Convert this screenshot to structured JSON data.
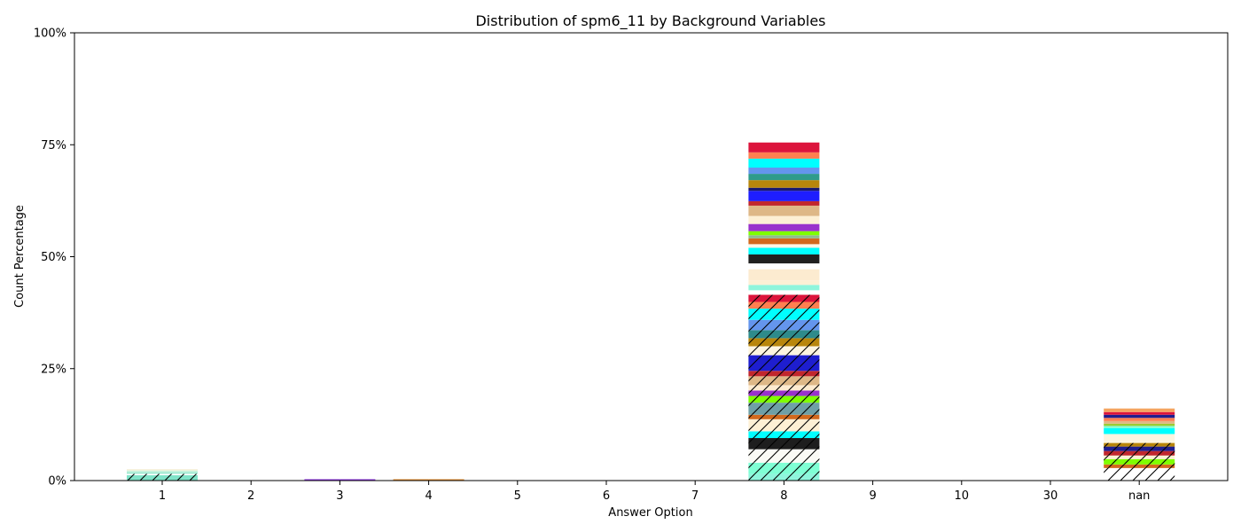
{
  "chart_data": {
    "type": "bar",
    "stacked": true,
    "title": "Distribution of spm6_11 by Background Variables",
    "xlabel": "Answer Option",
    "ylabel": "Count Percentage",
    "ylim": [
      0,
      100
    ],
    "y_ticks": [
      0,
      25,
      50,
      75,
      100
    ],
    "y_tick_labels": [
      "0%",
      "25%",
      "50%",
      "75%",
      "100%"
    ],
    "categories": [
      "1",
      "2",
      "3",
      "4",
      "5",
      "6",
      "7",
      "8",
      "9",
      "10",
      "30",
      "nan"
    ],
    "grid": false,
    "legend": "none",
    "stacks": {
      "1": [
        {
          "value": 1.2,
          "color": "#7fe3c8",
          "hatch": true
        },
        {
          "value": 0.3,
          "color": "#ffffff",
          "hatch": true
        },
        {
          "value": 0.4,
          "color": "#9fe9d2",
          "hatch": false
        },
        {
          "value": 0.35,
          "color": "#c9f3de",
          "hatch": false
        },
        {
          "value": 0.3,
          "color": "#f6efd8",
          "hatch": false
        }
      ],
      "3": [
        {
          "value": 0.3,
          "color": "#8a2be2",
          "hatch": false
        }
      ],
      "4": [
        {
          "value": 0.3,
          "color": "#e58b2a",
          "hatch": false
        }
      ],
      "8": [
        {
          "value": 1.5,
          "color": "#8ff5dc",
          "hatch": true
        },
        {
          "value": 2.5,
          "color": "#7fffd4",
          "hatch": true
        },
        {
          "value": 3.0,
          "color": "#fafaf5",
          "hatch": true
        },
        {
          "value": 2.5,
          "color": "#1e1e1e",
          "hatch": true
        },
        {
          "value": 1.5,
          "color": "#00ffff",
          "hatch": true
        },
        {
          "value": 2.7,
          "color": "#fdf0d5",
          "hatch": true
        },
        {
          "value": 1.0,
          "color": "#d2691e",
          "hatch": true
        },
        {
          "value": 2.7,
          "color": "#6f9fa6",
          "hatch": true
        },
        {
          "value": 1.5,
          "color": "#7fff00",
          "hatch": true
        },
        {
          "value": 1.2,
          "color": "#9932cc",
          "hatch": true
        },
        {
          "value": 1.2,
          "color": "#fdebd0",
          "hatch": true
        },
        {
          "value": 2.0,
          "color": "#deb887",
          "hatch": true
        },
        {
          "value": 1.2,
          "color": "#c1272d",
          "hatch": true
        },
        {
          "value": 3.5,
          "color": "#1e1ecf",
          "hatch": true
        },
        {
          "value": 2.0,
          "color": "#fdf5e0",
          "hatch": true
        },
        {
          "value": 1.8,
          "color": "#b8860b",
          "hatch": true
        },
        {
          "value": 1.8,
          "color": "#2e8b8b",
          "hatch": true
        },
        {
          "value": 2.3,
          "color": "#6495ed",
          "hatch": true
        },
        {
          "value": 2.5,
          "color": "#00ffff",
          "hatch": true
        },
        {
          "value": 1.5,
          "color": "#ff7f50",
          "hatch": true
        },
        {
          "value": 1.6,
          "color": "#dc143c",
          "hatch": true
        },
        {
          "value": 1.0,
          "color": "#ffffff",
          "hatch": false
        },
        {
          "value": 1.2,
          "color": "#8ff5dc",
          "hatch": false
        },
        {
          "value": 1.0,
          "color": "#fdf0d5",
          "hatch": false
        },
        {
          "value": 2.5,
          "color": "#fcebd0",
          "hatch": false
        },
        {
          "value": 1.3,
          "color": "#ffffff",
          "hatch": false
        },
        {
          "value": 2.0,
          "color": "#202020",
          "hatch": false
        },
        {
          "value": 1.5,
          "color": "#00ffff",
          "hatch": false
        },
        {
          "value": 0.8,
          "color": "#fff5e6",
          "hatch": false
        },
        {
          "value": 1.3,
          "color": "#d2691e",
          "hatch": false
        },
        {
          "value": 0.7,
          "color": "#8fbc8f",
          "hatch": false
        },
        {
          "value": 0.9,
          "color": "#7fff00",
          "hatch": false
        },
        {
          "value": 1.6,
          "color": "#9932cc",
          "hatch": false
        },
        {
          "value": 1.8,
          "color": "#fdf0d5",
          "hatch": false
        },
        {
          "value": 2.3,
          "color": "#deb887",
          "hatch": false
        },
        {
          "value": 1.0,
          "color": "#c1272d",
          "hatch": false
        },
        {
          "value": 2.3,
          "color": "#1e1eff",
          "hatch": false
        },
        {
          "value": 0.7,
          "color": "#191970",
          "hatch": false
        },
        {
          "value": 1.7,
          "color": "#b8860b",
          "hatch": false
        },
        {
          "value": 1.4,
          "color": "#2e9b8b",
          "hatch": false
        },
        {
          "value": 1.4,
          "color": "#6495ed",
          "hatch": false
        },
        {
          "value": 2.0,
          "color": "#00ffff",
          "hatch": false
        },
        {
          "value": 1.4,
          "color": "#ff7f50",
          "hatch": false
        },
        {
          "value": 2.2,
          "color": "#dc143c",
          "hatch": false
        }
      ],
      "nan": [
        {
          "value": 2.8,
          "color": "#ffffff",
          "hatch": true
        },
        {
          "value": 0.8,
          "color": "#d2691e",
          "hatch": true
        },
        {
          "value": 1.2,
          "color": "#7fff00",
          "hatch": true
        },
        {
          "value": 0.8,
          "color": "#fdf0d5",
          "hatch": true
        },
        {
          "value": 1.0,
          "color": "#c1272d",
          "hatch": true
        },
        {
          "value": 1.0,
          "color": "#1e1e8f",
          "hatch": true
        },
        {
          "value": 0.8,
          "color": "#b8860b",
          "hatch": true
        },
        {
          "value": 2.0,
          "color": "#fdf5e0",
          "hatch": false
        },
        {
          "value": 1.3,
          "color": "#00ffff",
          "hatch": false
        },
        {
          "value": 0.5,
          "color": "#7fffd4",
          "hatch": false
        },
        {
          "value": 0.5,
          "color": "#9acd32",
          "hatch": false
        },
        {
          "value": 0.6,
          "color": "#deb887",
          "hatch": false
        },
        {
          "value": 0.7,
          "color": "#ff7f50",
          "hatch": false
        },
        {
          "value": 0.7,
          "color": "#1e1e8f",
          "hatch": false
        },
        {
          "value": 0.6,
          "color": "#dc143c",
          "hatch": false
        },
        {
          "value": 0.8,
          "color": "#f4a460",
          "hatch": false
        }
      ]
    }
  }
}
